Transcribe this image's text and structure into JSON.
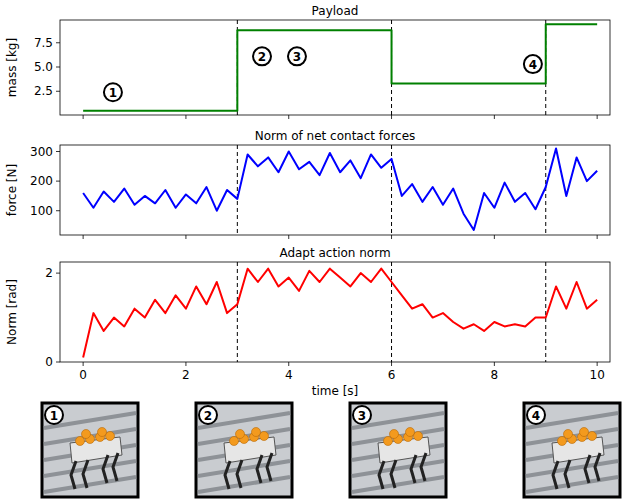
{
  "chart_data": [
    {
      "type": "line",
      "title": "Payload",
      "y_label": "mass [kg]",
      "color": "#008000",
      "line_style": "steps",
      "x": [
        0,
        3,
        6,
        9,
        10
      ],
      "values": [
        0.5,
        8.8,
        3.3,
        9.4,
        9.4
      ],
      "xlim": [
        -0.45,
        10.25
      ],
      "ylim": [
        0.05,
        9.85
      ],
      "xticks": [
        0,
        2,
        4,
        6,
        8,
        10
      ],
      "yticks": [
        2.5,
        {
          "value": 5,
          "label": "5.0"
        },
        7.5
      ],
      "tick_labels": "y",
      "vlines": [
        3,
        6,
        9
      ],
      "annotations": [
        {
          "text": "1",
          "x": 0.58,
          "y": 2.4
        },
        {
          "text": "2",
          "x": 3.48,
          "y": 6.1
        },
        {
          "text": "3",
          "x": 4.16,
          "y": 6.1
        },
        {
          "text": "4",
          "x": 8.75,
          "y": 5.3
        }
      ]
    },
    {
      "type": "line",
      "title": "Norm of net contact forces",
      "y_label": "force [N]",
      "color": "#0000ff",
      "x": [
        0,
        0.2,
        0.4,
        0.6,
        0.8,
        1.0,
        1.2,
        1.4,
        1.6,
        1.8,
        2.0,
        2.2,
        2.4,
        2.6,
        2.8,
        3.0,
        3.2,
        3.4,
        3.6,
        3.8,
        4.0,
        4.2,
        4.4,
        4.6,
        4.8,
        5.0,
        5.2,
        5.4,
        5.6,
        5.8,
        6.0,
        6.2,
        6.4,
        6.6,
        6.8,
        7.0,
        7.2,
        7.4,
        7.6,
        7.8,
        8.0,
        8.2,
        8.4,
        8.6,
        8.8,
        9.0,
        9.2,
        9.4,
        9.6,
        9.8,
        10.0
      ],
      "values": [
        160,
        110,
        165,
        130,
        175,
        120,
        150,
        125,
        170,
        110,
        155,
        125,
        180,
        100,
        170,
        140,
        290,
        250,
        280,
        230,
        300,
        240,
        265,
        220,
        295,
        230,
        270,
        210,
        290,
        245,
        275,
        150,
        190,
        130,
        180,
        120,
        175,
        90,
        35,
        160,
        110,
        195,
        130,
        160,
        105,
        180,
        310,
        150,
        280,
        200,
        235
      ],
      "xlim": [
        -0.45,
        10.25
      ],
      "ylim": [
        18,
        322
      ],
      "xticks": [
        0,
        2,
        4,
        6,
        8,
        10
      ],
      "yticks": [
        100,
        200,
        300
      ],
      "tick_labels": "y",
      "vlines": [
        3,
        6,
        9
      ]
    },
    {
      "type": "line",
      "title": "Adapt action norm",
      "y_label": "Norm [rad]",
      "x_label": "time [s]",
      "color": "#ff0000",
      "x": [
        0,
        0.2,
        0.4,
        0.6,
        0.8,
        1.0,
        1.2,
        1.4,
        1.6,
        1.8,
        2.0,
        2.2,
        2.4,
        2.6,
        2.8,
        3.0,
        3.2,
        3.4,
        3.6,
        3.8,
        4.0,
        4.2,
        4.4,
        4.6,
        4.8,
        5.0,
        5.2,
        5.4,
        5.6,
        5.8,
        6.0,
        6.2,
        6.4,
        6.6,
        6.8,
        7.0,
        7.2,
        7.4,
        7.6,
        7.8,
        8.0,
        8.2,
        8.4,
        8.6,
        8.8,
        9.0,
        9.2,
        9.4,
        9.6,
        9.8,
        10.0
      ],
      "values": [
        0.1,
        1.1,
        0.7,
        1.0,
        0.8,
        1.2,
        1.0,
        1.4,
        1.1,
        1.5,
        1.2,
        1.7,
        1.3,
        1.8,
        1.1,
        1.3,
        2.1,
        1.8,
        2.1,
        1.7,
        1.9,
        1.6,
        2.05,
        1.8,
        2.1,
        1.9,
        1.7,
        2.0,
        1.8,
        2.1,
        1.8,
        1.5,
        1.2,
        1.3,
        1.0,
        1.1,
        0.9,
        0.75,
        0.85,
        0.7,
        0.9,
        0.8,
        0.85,
        0.8,
        1.0,
        1.0,
        1.7,
        1.2,
        1.8,
        1.2,
        1.4
      ],
      "xlim": [
        -0.45,
        10.25
      ],
      "ylim": [
        0,
        2.25
      ],
      "xticks": [
        0,
        2,
        4,
        6,
        8,
        10
      ],
      "yticks": [
        0,
        2
      ],
      "vlines": [
        3,
        6,
        9
      ]
    }
  ],
  "images": {
    "labels": [
      "1",
      "2",
      "3",
      "4"
    ]
  }
}
